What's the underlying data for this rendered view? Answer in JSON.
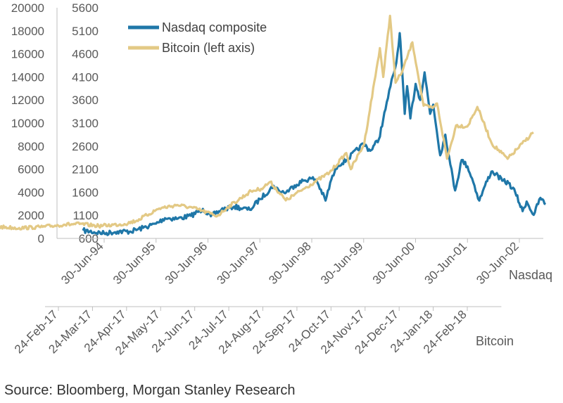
{
  "chart_data": {
    "type": "line",
    "title": "",
    "source": "Source: Bloomberg, Morgan Stanley Research",
    "colors": {
      "Nasdaq composite": "#1f77a8",
      "Bitcoin (left axis)": "#e3c985"
    },
    "y_left": {
      "label": "",
      "ticks": [
        "0",
        "2000",
        "4000",
        "6000",
        "8000",
        "10000",
        "12000",
        "14000",
        "16000",
        "18000",
        "20000"
      ],
      "range": [
        0,
        20000
      ]
    },
    "y_right": {
      "label": "",
      "ticks": [
        "600",
        "1100",
        "1600",
        "2100",
        "2600",
        "3100",
        "3600",
        "4100",
        "4600",
        "5100",
        "5600"
      ],
      "range": [
        600,
        5600
      ]
    },
    "x_nasdaq": {
      "title": "Nasdaq",
      "ticks": [
        "30-Jun-94",
        "30-Jun-95",
        "30-Jun-96",
        "30-Jun-97",
        "30-Jun-98",
        "30-Jun-99",
        "30-Jun-00",
        "30-Jun-01",
        "30-Jun-02"
      ]
    },
    "x_bitcoin": {
      "title": "Bitcoin",
      "ticks": [
        "24-Feb-17",
        "24-Mar-17",
        "24-Apr-17",
        "24-May-17",
        "24-Jun-17",
        "24-Jul-17",
        "24-Aug-17",
        "24-Sep-17",
        "24-Oct-17",
        "24-Nov-17",
        "24-Dec-17",
        "24-Jan-18",
        "24-Feb-18"
      ]
    },
    "legend_position": "top-left",
    "series": [
      {
        "name": "Nasdaq composite",
        "axis": "right",
        "x_axis": "Nasdaq",
        "points": [
          [
            "1994-02-01",
            770
          ],
          [
            "1994-06-30",
            710
          ],
          [
            "1994-10-01",
            750
          ],
          [
            "1995-01-01",
            750
          ],
          [
            "1995-04-01",
            830
          ],
          [
            "1995-06-30",
            920
          ],
          [
            "1995-09-01",
            1040
          ],
          [
            "1995-12-01",
            1030
          ],
          [
            "1996-03-01",
            1090
          ],
          [
            "1996-05-25",
            1240
          ],
          [
            "1996-07-20",
            1080
          ],
          [
            "1996-10-01",
            1220
          ],
          [
            "1996-12-31",
            1290
          ],
          [
            "1997-03-01",
            1250
          ],
          [
            "1997-04-20",
            1220
          ],
          [
            "1997-06-30",
            1450
          ],
          [
            "1997-10-05",
            1740
          ],
          [
            "1997-11-15",
            1620
          ],
          [
            "1998-01-01",
            1600
          ],
          [
            "1998-03-01",
            1750
          ],
          [
            "1998-05-01",
            1850
          ],
          [
            "1998-06-30",
            1900
          ],
          [
            "1998-08-01",
            1870
          ],
          [
            "1998-10-05",
            1420
          ],
          [
            "1998-11-15",
            1880
          ],
          [
            "1998-12-31",
            2190
          ],
          [
            "1999-03-01",
            2300
          ],
          [
            "1999-06-30",
            2650
          ],
          [
            "1999-08-15",
            2500
          ],
          [
            "1999-10-15",
            2750
          ],
          [
            "1999-12-01",
            3400
          ],
          [
            "2000-01-05",
            3900
          ],
          [
            "2000-02-15",
            4400
          ],
          [
            "2000-03-10",
            5050
          ],
          [
            "2000-03-20",
            4600
          ],
          [
            "2000-04-14",
            3300
          ],
          [
            "2000-05-01",
            3900
          ],
          [
            "2000-05-24",
            3200
          ],
          [
            "2000-06-30",
            3950
          ],
          [
            "2000-08-01",
            3600
          ],
          [
            "2000-09-01",
            4200
          ],
          [
            "2000-10-10",
            3300
          ],
          [
            "2000-11-01",
            3500
          ],
          [
            "2000-12-20",
            2400
          ],
          [
            "2001-01-25",
            2850
          ],
          [
            "2001-03-01",
            2200
          ],
          [
            "2001-04-04",
            1640
          ],
          [
            "2001-05-20",
            2300
          ],
          [
            "2001-06-30",
            2160
          ],
          [
            "2001-08-01",
            1900
          ],
          [
            "2001-09-21",
            1420
          ],
          [
            "2001-11-01",
            1750
          ],
          [
            "2001-12-15",
            2050
          ],
          [
            "2002-01-15",
            2000
          ],
          [
            "2002-03-01",
            1850
          ],
          [
            "2002-04-15",
            1800
          ],
          [
            "2002-06-01",
            1600
          ],
          [
            "2002-07-23",
            1190
          ],
          [
            "2002-08-20",
            1400
          ],
          [
            "2002-10-09",
            1110
          ],
          [
            "2002-11-25",
            1480
          ],
          [
            "2002-12-31",
            1340
          ]
        ]
      },
      {
        "name": "Bitcoin (left axis)",
        "axis": "left",
        "x_axis": "Bitcoin",
        "points": [
          [
            "2017-01-01",
            1000
          ],
          [
            "2017-01-20",
            900
          ],
          [
            "2017-02-10",
            1000
          ],
          [
            "2017-03-01",
            1200
          ],
          [
            "2017-03-15",
            1250
          ],
          [
            "2017-04-01",
            1080
          ],
          [
            "2017-04-24",
            1250
          ],
          [
            "2017-05-05",
            1550
          ],
          [
            "2017-05-25",
            2600
          ],
          [
            "2017-06-10",
            2900
          ],
          [
            "2017-06-24",
            2650
          ],
          [
            "2017-07-16",
            1950
          ],
          [
            "2017-07-25",
            2700
          ],
          [
            "2017-08-15",
            4100
          ],
          [
            "2017-08-24",
            4300
          ],
          [
            "2017-09-01",
            4900
          ],
          [
            "2017-09-15",
            3300
          ],
          [
            "2017-10-01",
            4300
          ],
          [
            "2017-10-24",
            5700
          ],
          [
            "2017-11-08",
            7400
          ],
          [
            "2017-11-12",
            6000
          ],
          [
            "2017-11-24",
            8200
          ],
          [
            "2017-12-08",
            16500
          ],
          [
            "2017-12-11",
            14000
          ],
          [
            "2017-12-17",
            19300
          ],
          [
            "2017-12-22",
            13500
          ],
          [
            "2017-12-28",
            14500
          ],
          [
            "2018-01-06",
            17000
          ],
          [
            "2018-01-16",
            11500
          ],
          [
            "2018-01-24",
            11300
          ],
          [
            "2018-01-28",
            11700
          ],
          [
            "2018-02-06",
            6900
          ],
          [
            "2018-02-14",
            9800
          ],
          [
            "2018-02-24",
            9700
          ],
          [
            "2018-03-05",
            11400
          ],
          [
            "2018-03-18",
            8200
          ],
          [
            "2018-04-01",
            6900
          ],
          [
            "2018-04-24",
            9200
          ]
        ]
      }
    ]
  }
}
